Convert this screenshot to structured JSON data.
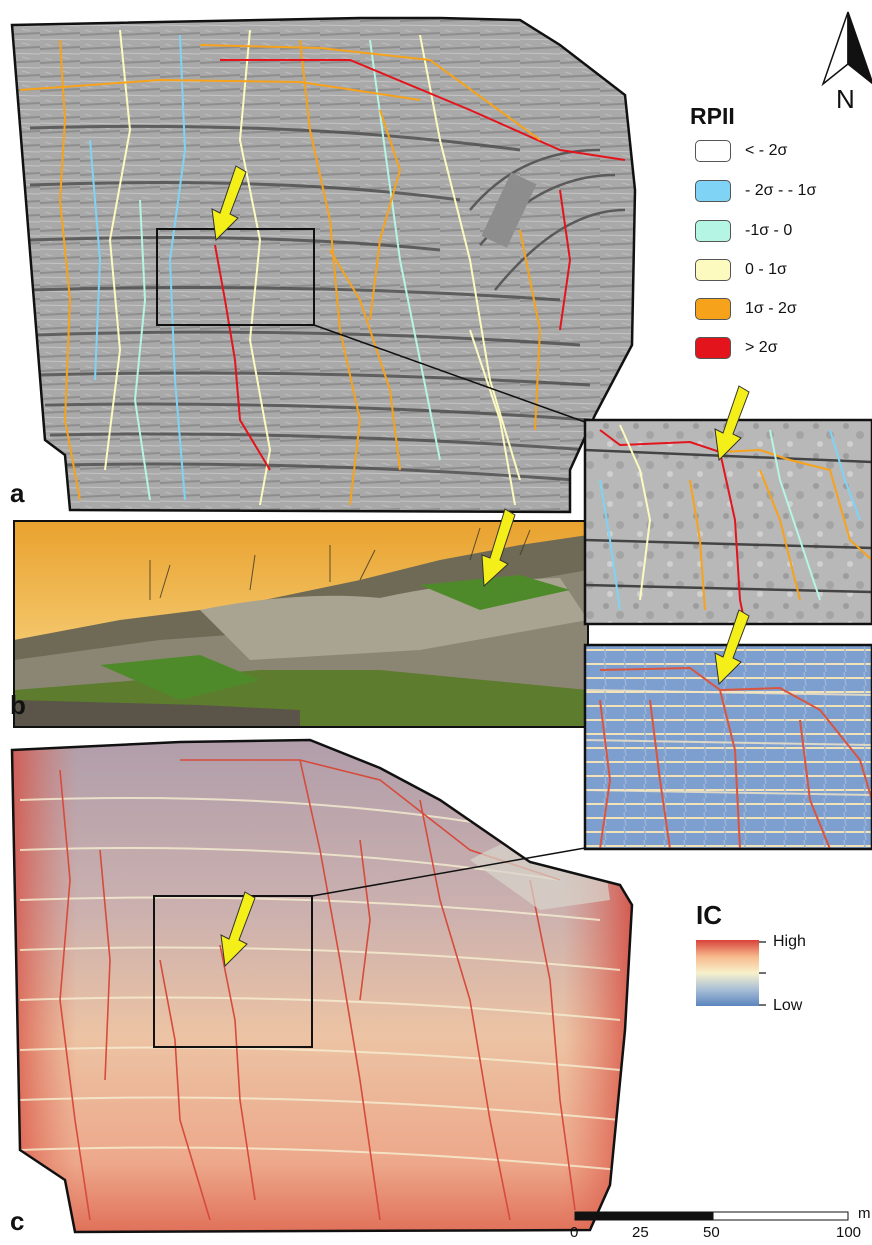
{
  "panels": {
    "a": {
      "letter": "a"
    },
    "b": {
      "letter": "b"
    },
    "c": {
      "letter": "c"
    }
  },
  "north_arrow": {
    "label": "N"
  },
  "rpii_legend": {
    "title": "RPII",
    "items": [
      {
        "label": "< - 2σ",
        "color": "#ffffff"
      },
      {
        "label": "- 2σ - - 1σ",
        "color": "#7fd3f5"
      },
      {
        "label": "-1σ - 0",
        "color": "#b4f5e4"
      },
      {
        "label": "0 - 1σ",
        "color": "#fdfabf"
      },
      {
        "label": "1σ - 2σ",
        "color": "#f7a21b"
      },
      {
        "label": "> 2σ",
        "color": "#e3141c"
      }
    ]
  },
  "ic_legend": {
    "title": "IC",
    "high_label": "High",
    "low_label": "Low",
    "colors": [
      "#d8423b",
      "#f7b98c",
      "#f7f1cc",
      "#a9bfd6",
      "#5b85bf"
    ]
  },
  "scale_bar": {
    "ticks": [
      "0",
      "25",
      "50",
      "100"
    ],
    "unit": "m"
  },
  "arrow_color": "#f4ef18"
}
